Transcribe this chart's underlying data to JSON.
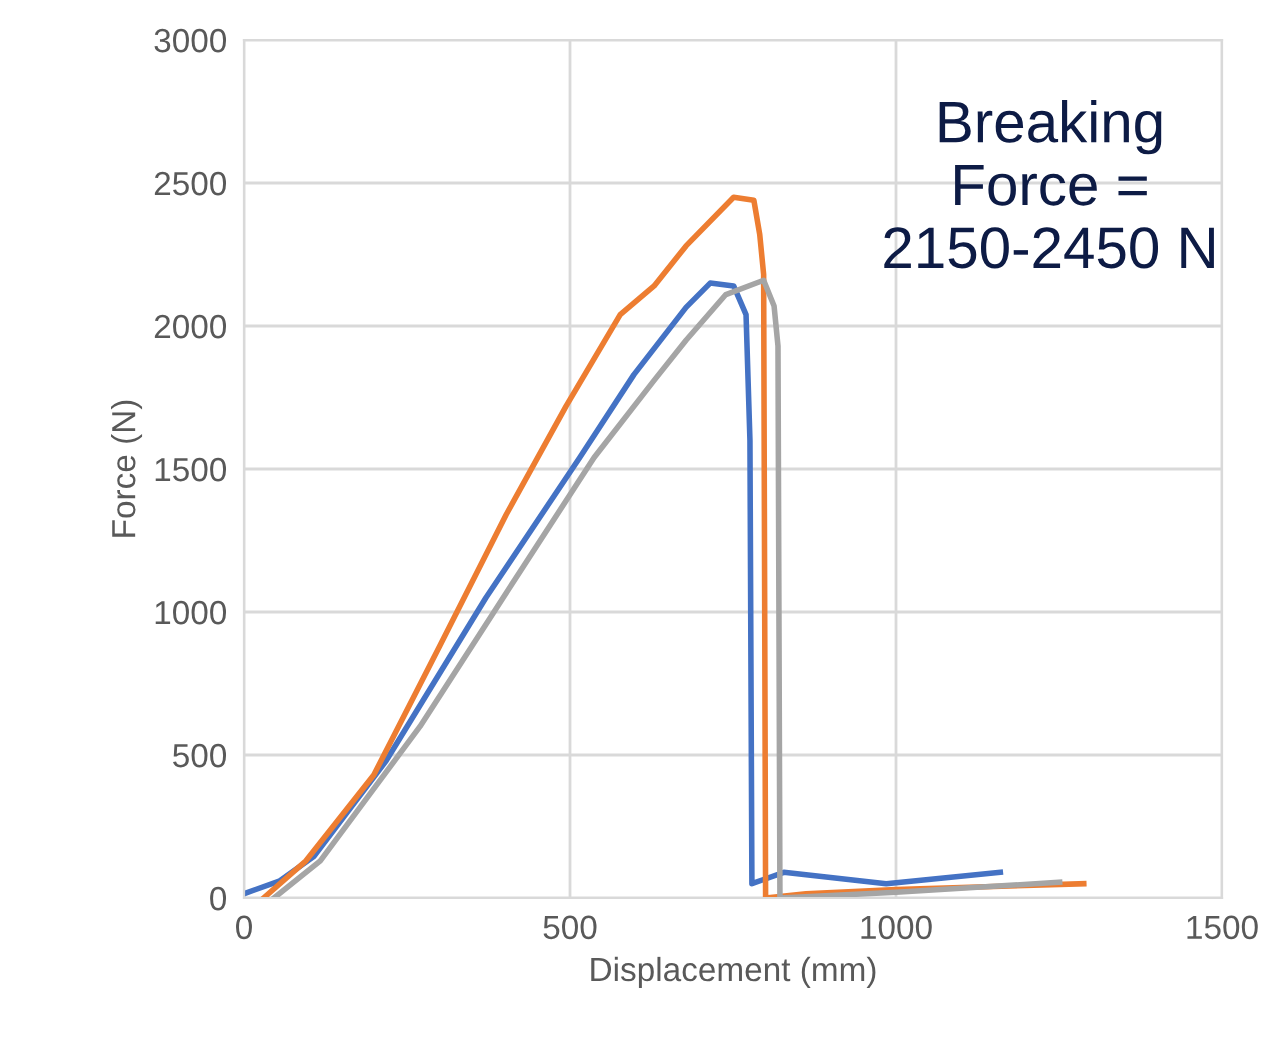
{
  "chart_data": {
    "type": "line",
    "xlabel": "Displacement (mm)",
    "ylabel": "Force (N)",
    "xlim": [
      0,
      1500
    ],
    "ylim": [
      0,
      3000
    ],
    "xticks": [
      0,
      500,
      1000,
      1500
    ],
    "yticks": [
      0,
      500,
      1000,
      1500,
      2000,
      2500,
      3000
    ],
    "grid": true,
    "marker": "none",
    "line_style": "solid",
    "series": [
      {
        "color": "#4472c4",
        "x": [
          0,
          55,
          107,
          218,
          371,
          515,
          598,
          678,
          715,
          751,
          770,
          776,
          779,
          828,
          985,
          1160
        ],
        "values": [
          15,
          60,
          145,
          480,
          1050,
          1540,
          1830,
          2065,
          2150,
          2140,
          2040,
          1600,
          50,
          90,
          50,
          90
        ]
      },
      {
        "color": "#ed7d31",
        "x": [
          30,
          95,
          199,
          300,
          402,
          494,
          577,
          629,
          678,
          751,
          782,
          791,
          797,
          800,
          862,
          1000,
          1288
        ],
        "values": [
          0,
          130,
          430,
          880,
          1340,
          1720,
          2040,
          2140,
          2280,
          2450,
          2440,
          2320,
          2180,
          0,
          15,
          30,
          50
        ]
      },
      {
        "color": "#a5a5a5",
        "x": [
          46,
          117,
          270,
          423,
          537,
          629,
          678,
          739,
          797,
          813,
          819,
          822,
          1000,
          1251
        ],
        "values": [
          0,
          130,
          600,
          1140,
          1540,
          1810,
          1950,
          2110,
          2160,
          2070,
          1930,
          0,
          20,
          55
        ]
      }
    ],
    "annotations": [
      "Breaking\nForce =\n2150-2450 N"
    ]
  }
}
